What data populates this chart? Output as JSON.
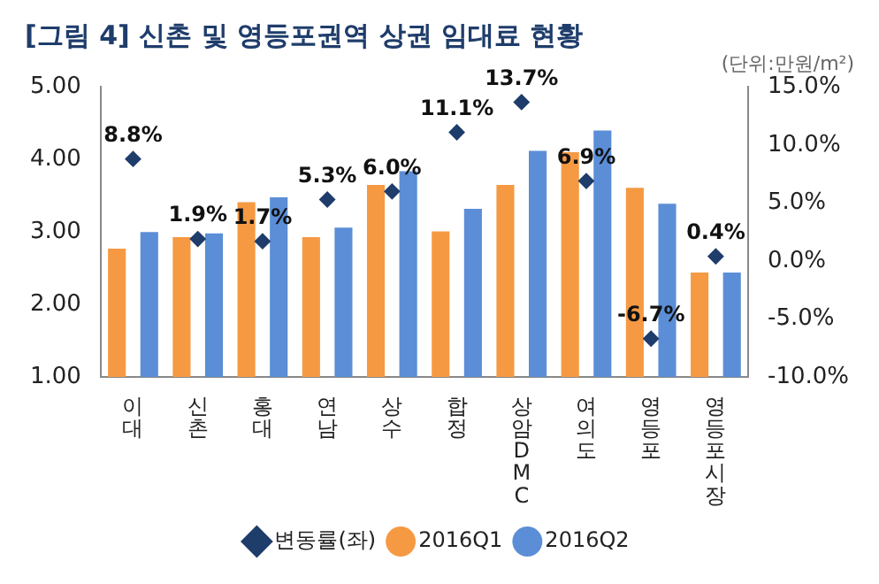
{
  "chart_data": {
    "type": "bar",
    "title": "[그림 4] 신촌 및 영등포권역 상권 임대료 현황",
    "subtitle": "(단위:만원/m²)",
    "categories": [
      "이대",
      "신촌",
      "홍대",
      "연남",
      "상수",
      "합정",
      "상암 DMC",
      "여의도",
      "영등포",
      "영등포시장"
    ],
    "series": [
      {
        "name": "2016Q1",
        "color": "#f59a43",
        "values": [
          2.77,
          2.93,
          3.41,
          2.93,
          3.65,
          3.01,
          3.65,
          4.1,
          3.61,
          2.44
        ]
      },
      {
        "name": "2016Q2",
        "color": "#5b8ed6",
        "values": [
          3.0,
          2.98,
          3.48,
          3.06,
          3.84,
          3.32,
          4.12,
          4.4,
          3.39,
          2.44
        ]
      },
      {
        "name": "변동률(좌)",
        "type": "scatter",
        "axis": "y2",
        "marker": "diamond",
        "color": "#1f3d6b",
        "values": [
          8.8,
          1.9,
          1.7,
          5.3,
          6.0,
          11.1,
          13.7,
          6.9,
          -6.7,
          0.4
        ],
        "value_labels": [
          "8.8%",
          "1.9%",
          "1.7%",
          "5.3%",
          "6.0%",
          "11.1%",
          "13.7%",
          "6.9%",
          "-6.7%",
          "0.4%"
        ]
      }
    ],
    "ylim": [
      1,
      5
    ],
    "yticks": [
      {
        "value": 1,
        "label": "1.00"
      },
      {
        "value": 2,
        "label": "2.00"
      },
      {
        "value": 3,
        "label": "3.00"
      },
      {
        "value": 4,
        "label": "4.00"
      },
      {
        "value": 5,
        "label": "5.00"
      }
    ],
    "y2lim": [
      -10,
      15
    ],
    "y2ticks": [
      {
        "value": -10,
        "label": "-10.0%"
      },
      {
        "value": -5,
        "label": "-5.0%"
      },
      {
        "value": 0,
        "label": "0.0%"
      },
      {
        "value": 5,
        "label": "5.0%"
      },
      {
        "value": 10,
        "label": "10.0%"
      },
      {
        "value": 15,
        "label": "15.0%"
      }
    ],
    "grid": false,
    "legend": "bottom"
  }
}
